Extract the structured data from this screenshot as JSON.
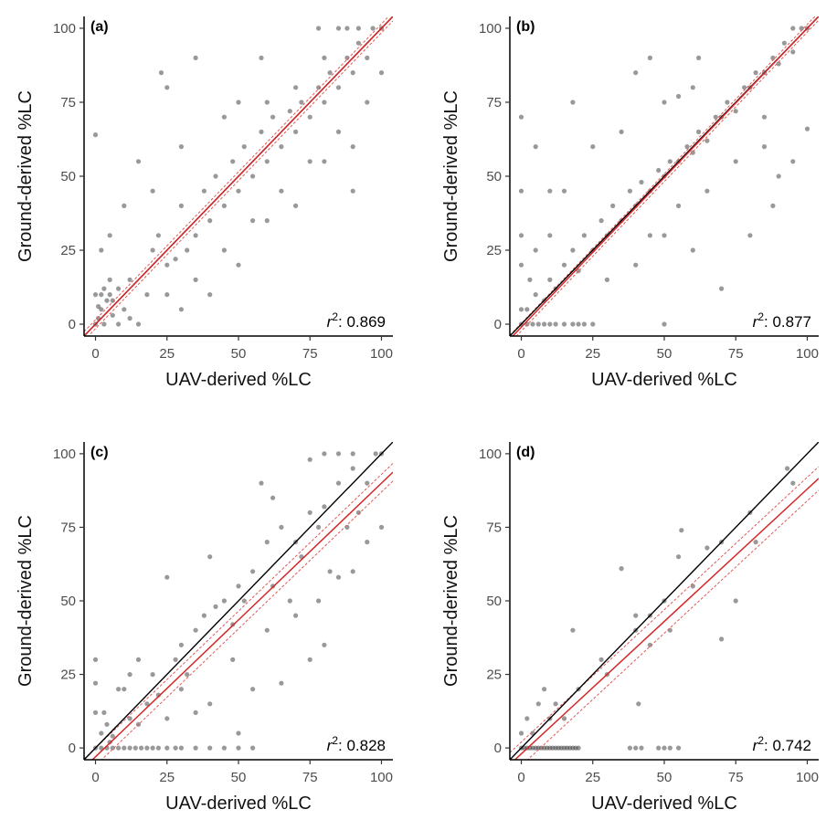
{
  "figure": {
    "colors": {
      "points": "#333333",
      "identity_line": "#000000",
      "fit_line": "#d62728",
      "ci_line": "#e05a5a",
      "axis": "#000000",
      "tick_text": "#4d4d4d"
    }
  },
  "chart_data": [
    {
      "type": "scatter",
      "panel_label": "(a)",
      "xlabel": "UAV-derived %LC",
      "ylabel": "Ground-derived %LC",
      "xlim": [
        -4,
        104
      ],
      "ylim": [
        -4,
        104
      ],
      "xticks": [
        "0",
        "25",
        "50",
        "75",
        "100"
      ],
      "yticks": [
        "0",
        "25",
        "50",
        "75",
        "100"
      ],
      "annotation": {
        "symbol": "r",
        "superscript": "2",
        "text": ": 0.869"
      },
      "reference_line": {
        "name": "1:1",
        "slope": 1,
        "intercept": 0
      },
      "fit_line": {
        "slope": 1.0,
        "intercept": 0.0
      },
      "ci_offset": 1.5,
      "points": [
        [
          0,
          0
        ],
        [
          1,
          2
        ],
        [
          2,
          5
        ],
        [
          3,
          0
        ],
        [
          4,
          8
        ],
        [
          5,
          10
        ],
        [
          6,
          3
        ],
        [
          8,
          12
        ],
        [
          10,
          5
        ],
        [
          2,
          10
        ],
        [
          12,
          15
        ],
        [
          5,
          15
        ],
        [
          15,
          0
        ],
        [
          18,
          10
        ],
        [
          20,
          25
        ],
        [
          22,
          30
        ],
        [
          25,
          20
        ],
        [
          28,
          22
        ],
        [
          30,
          40
        ],
        [
          32,
          25
        ],
        [
          35,
          30
        ],
        [
          38,
          45
        ],
        [
          40,
          35
        ],
        [
          42,
          50
        ],
        [
          45,
          40
        ],
        [
          48,
          55
        ],
        [
          50,
          45
        ],
        [
          52,
          60
        ],
        [
          55,
          50
        ],
        [
          58,
          65
        ],
        [
          60,
          55
        ],
        [
          62,
          70
        ],
        [
          65,
          60
        ],
        [
          68,
          72
        ],
        [
          70,
          65
        ],
        [
          72,
          75
        ],
        [
          75,
          70
        ],
        [
          78,
          80
        ],
        [
          80,
          75
        ],
        [
          82,
          85
        ],
        [
          85,
          80
        ],
        [
          88,
          90
        ],
        [
          90,
          85
        ],
        [
          92,
          95
        ],
        [
          95,
          90
        ],
        [
          97,
          100
        ],
        [
          100,
          100
        ],
        [
          88,
          100
        ],
        [
          80,
          90
        ],
        [
          70,
          80
        ],
        [
          60,
          75
        ],
        [
          45,
          70
        ],
        [
          30,
          60
        ],
        [
          20,
          45
        ],
        [
          10,
          40
        ],
        [
          5,
          30
        ],
        [
          2,
          25
        ],
        [
          15,
          55
        ],
        [
          25,
          80
        ],
        [
          35,
          90
        ],
        [
          60,
          35
        ],
        [
          70,
          40
        ],
        [
          80,
          55
        ],
        [
          90,
          60
        ],
        [
          50,
          20
        ],
        [
          40,
          10
        ],
        [
          30,
          5
        ],
        [
          65,
          45
        ],
        [
          75,
          55
        ],
        [
          85,
          65
        ],
        [
          55,
          35
        ],
        [
          45,
          25
        ],
        [
          35,
          15
        ],
        [
          25,
          10
        ],
        [
          12,
          2
        ],
        [
          8,
          0
        ],
        [
          6,
          8
        ],
        [
          3,
          12
        ],
        [
          1,
          6
        ],
        [
          0,
          10
        ],
        [
          0,
          64
        ],
        [
          23,
          85
        ],
        [
          95,
          75
        ],
        [
          90,
          45
        ],
        [
          100,
          85
        ],
        [
          85,
          100
        ],
        [
          78,
          100
        ],
        [
          92,
          100
        ],
        [
          50,
          75
        ],
        [
          58,
          90
        ]
      ]
    },
    {
      "type": "scatter",
      "panel_label": "(b)",
      "xlabel": "UAV-derived %LC",
      "ylabel": "Ground-derived %LC",
      "xlim": [
        -4,
        104
      ],
      "ylim": [
        -4,
        104
      ],
      "xticks": [
        "0",
        "25",
        "50",
        "75",
        "100"
      ],
      "yticks": [
        "0",
        "25",
        "50",
        "75",
        "100"
      ],
      "annotation": {
        "symbol": "r",
        "superscript": "2",
        "text": ": 0.877"
      },
      "reference_line": {
        "name": "1:1",
        "slope": 1,
        "intercept": 0
      },
      "fit_line": {
        "slope": 1.01,
        "intercept": -1.0
      },
      "ci_offset": 1.3,
      "points": [
        [
          0,
          0
        ],
        [
          2,
          0
        ],
        [
          4,
          0
        ],
        [
          6,
          0
        ],
        [
          8,
          0
        ],
        [
          10,
          0
        ],
        [
          12,
          0
        ],
        [
          15,
          0
        ],
        [
          18,
          0
        ],
        [
          20,
          0
        ],
        [
          22,
          0
        ],
        [
          25,
          0
        ],
        [
          50,
          0
        ],
        [
          0,
          5
        ],
        [
          2,
          5
        ],
        [
          5,
          10
        ],
        [
          8,
          8
        ],
        [
          10,
          15
        ],
        [
          12,
          12
        ],
        [
          15,
          20
        ],
        [
          18,
          25
        ],
        [
          20,
          18
        ],
        [
          22,
          30
        ],
        [
          25,
          25
        ],
        [
          28,
          35
        ],
        [
          30,
          30
        ],
        [
          32,
          40
        ],
        [
          35,
          35
        ],
        [
          38,
          45
        ],
        [
          40,
          40
        ],
        [
          42,
          48
        ],
        [
          45,
          45
        ],
        [
          48,
          52
        ],
        [
          50,
          50
        ],
        [
          52,
          55
        ],
        [
          55,
          55
        ],
        [
          58,
          60
        ],
        [
          60,
          58
        ],
        [
          62,
          65
        ],
        [
          65,
          62
        ],
        [
          68,
          70
        ],
        [
          70,
          70
        ],
        [
          72,
          75
        ],
        [
          75,
          72
        ],
        [
          78,
          80
        ],
        [
          80,
          80
        ],
        [
          82,
          85
        ],
        [
          85,
          85
        ],
        [
          88,
          90
        ],
        [
          90,
          88
        ],
        [
          92,
          95
        ],
        [
          95,
          92
        ],
        [
          98,
          100
        ],
        [
          100,
          100
        ],
        [
          0,
          45
        ],
        [
          0,
          70
        ],
        [
          5,
          60
        ],
        [
          10,
          45
        ],
        [
          18,
          75
        ],
        [
          25,
          60
        ],
        [
          35,
          65
        ],
        [
          40,
          85
        ],
        [
          45,
          90
        ],
        [
          62,
          90
        ],
        [
          70,
          12
        ],
        [
          60,
          25
        ],
        [
          50,
          30
        ],
        [
          30,
          15
        ],
        [
          40,
          20
        ],
        [
          45,
          30
        ],
        [
          55,
          40
        ],
        [
          65,
          45
        ],
        [
          75,
          55
        ],
        [
          85,
          60
        ],
        [
          95,
          55
        ],
        [
          88,
          40
        ],
        [
          80,
          30
        ],
        [
          90,
          50
        ],
        [
          100,
          66
        ],
        [
          95,
          100
        ],
        [
          85,
          70
        ],
        [
          60,
          80
        ],
        [
          55,
          77
        ],
        [
          50,
          75
        ],
        [
          15,
          45
        ],
        [
          10,
          30
        ],
        [
          5,
          25
        ],
        [
          0,
          20
        ],
        [
          0,
          30
        ],
        [
          3,
          15
        ]
      ]
    },
    {
      "type": "scatter",
      "panel_label": "(c)",
      "xlabel": "UAV-derived %LC",
      "ylabel": "Ground-derived %LC",
      "xlim": [
        -4,
        104
      ],
      "ylim": [
        -4,
        104
      ],
      "xticks": [
        "0",
        "25",
        "50",
        "75",
        "100"
      ],
      "yticks": [
        "0",
        "25",
        "50",
        "75",
        "100"
      ],
      "annotation": {
        "symbol": "r",
        "superscript": "2",
        "text": ": 0.828"
      },
      "reference_line": {
        "name": "1:1",
        "slope": 1,
        "intercept": 0
      },
      "fit_line": {
        "slope": 0.93,
        "intercept": -3.0
      },
      "ci_offset": 3.0,
      "points": [
        [
          0,
          0
        ],
        [
          2,
          0
        ],
        [
          4,
          0
        ],
        [
          6,
          0
        ],
        [
          8,
          0
        ],
        [
          10,
          0
        ],
        [
          12,
          0
        ],
        [
          14,
          0
        ],
        [
          16,
          0
        ],
        [
          18,
          0
        ],
        [
          20,
          0
        ],
        [
          22,
          0
        ],
        [
          25,
          0
        ],
        [
          28,
          0
        ],
        [
          30,
          0
        ],
        [
          35,
          0
        ],
        [
          40,
          0
        ],
        [
          45,
          0
        ],
        [
          50,
          0
        ],
        [
          55,
          0
        ],
        [
          0,
          30
        ],
        [
          0,
          22
        ],
        [
          0,
          12
        ],
        [
          2,
          5
        ],
        [
          4,
          8
        ],
        [
          6,
          4
        ],
        [
          8,
          20
        ],
        [
          10,
          20
        ],
        [
          12,
          10
        ],
        [
          15,
          30
        ],
        [
          18,
          15
        ],
        [
          20,
          25
        ],
        [
          22,
          18
        ],
        [
          25,
          58
        ],
        [
          28,
          30
        ],
        [
          30,
          35
        ],
        [
          32,
          25
        ],
        [
          35,
          40
        ],
        [
          38,
          45
        ],
        [
          40,
          65
        ],
        [
          42,
          48
        ],
        [
          45,
          50
        ],
        [
          48,
          42
        ],
        [
          50,
          55
        ],
        [
          52,
          50
        ],
        [
          55,
          60
        ],
        [
          58,
          90
        ],
        [
          60,
          70
        ],
        [
          62,
          55
        ],
        [
          65,
          75
        ],
        [
          68,
          50
        ],
        [
          70,
          70
        ],
        [
          72,
          65
        ],
        [
          75,
          80
        ],
        [
          78,
          75
        ],
        [
          80,
          82
        ],
        [
          82,
          60
        ],
        [
          85,
          90
        ],
        [
          88,
          75
        ],
        [
          90,
          95
        ],
        [
          92,
          80
        ],
        [
          95,
          90
        ],
        [
          98,
          100
        ],
        [
          100,
          100
        ],
        [
          80,
          100
        ],
        [
          85,
          100
        ],
        [
          90,
          100
        ],
        [
          75,
          98
        ],
        [
          62,
          85
        ],
        [
          48,
          30
        ],
        [
          40,
          15
        ],
        [
          50,
          5
        ],
        [
          55,
          20
        ],
        [
          60,
          40
        ],
        [
          65,
          22
        ],
        [
          70,
          45
        ],
        [
          78,
          50
        ],
        [
          80,
          35
        ],
        [
          75,
          30
        ],
        [
          85,
          58
        ],
        [
          95,
          70
        ],
        [
          90,
          60
        ],
        [
          100,
          75
        ],
        [
          25,
          10
        ],
        [
          30,
          20
        ],
        [
          35,
          12
        ],
        [
          15,
          8
        ],
        [
          5,
          2
        ],
        [
          3,
          12
        ],
        [
          12,
          25
        ]
      ]
    },
    {
      "type": "scatter",
      "panel_label": "(d)",
      "xlabel": "UAV-derived %LC",
      "ylabel": "Ground-derived %LC",
      "xlim": [
        -4,
        104
      ],
      "ylim": [
        -4,
        104
      ],
      "xticks": [
        "0",
        "25",
        "50",
        "75",
        "100"
      ],
      "yticks": [
        "0",
        "25",
        "50",
        "75",
        "100"
      ],
      "annotation": {
        "symbol": "r",
        "superscript": "2",
        "text": ": 0.742"
      },
      "reference_line": {
        "name": "1:1",
        "slope": 1,
        "intercept": 0
      },
      "fit_line": {
        "slope": 0.9,
        "intercept": -2.0
      },
      "ci_offset": 4.0,
      "points": [
        [
          0,
          0
        ],
        [
          1,
          0
        ],
        [
          2,
          0
        ],
        [
          3,
          0
        ],
        [
          4,
          0
        ],
        [
          5,
          0
        ],
        [
          6,
          0
        ],
        [
          7,
          0
        ],
        [
          8,
          0
        ],
        [
          9,
          0
        ],
        [
          10,
          0
        ],
        [
          11,
          0
        ],
        [
          12,
          0
        ],
        [
          13,
          0
        ],
        [
          14,
          0
        ],
        [
          15,
          0
        ],
        [
          16,
          0
        ],
        [
          17,
          0
        ],
        [
          18,
          0
        ],
        [
          19,
          0
        ],
        [
          20,
          0
        ],
        [
          38,
          0
        ],
        [
          40,
          0
        ],
        [
          42,
          0
        ],
        [
          48,
          0
        ],
        [
          50,
          0
        ],
        [
          52,
          0
        ],
        [
          55,
          0
        ],
        [
          0,
          5
        ],
        [
          2,
          10
        ],
        [
          4,
          5
        ],
        [
          6,
          15
        ],
        [
          8,
          20
        ],
        [
          10,
          10
        ],
        [
          12,
          15
        ],
        [
          15,
          10
        ],
        [
          18,
          40
        ],
        [
          20,
          20
        ],
        [
          28,
          30
        ],
        [
          35,
          61
        ],
        [
          40,
          40
        ],
        [
          40,
          45
        ],
        [
          41,
          15
        ],
        [
          45,
          45
        ],
        [
          50,
          50
        ],
        [
          52,
          40
        ],
        [
          55,
          65
        ],
        [
          56,
          74
        ],
        [
          60,
          55
        ],
        [
          65,
          68
        ],
        [
          70,
          70
        ],
        [
          75,
          50
        ],
        [
          80,
          80
        ],
        [
          82,
          70
        ],
        [
          93,
          95
        ],
        [
          95,
          90
        ],
        [
          70,
          37
        ],
        [
          45,
          35
        ],
        [
          30,
          25
        ]
      ]
    }
  ]
}
